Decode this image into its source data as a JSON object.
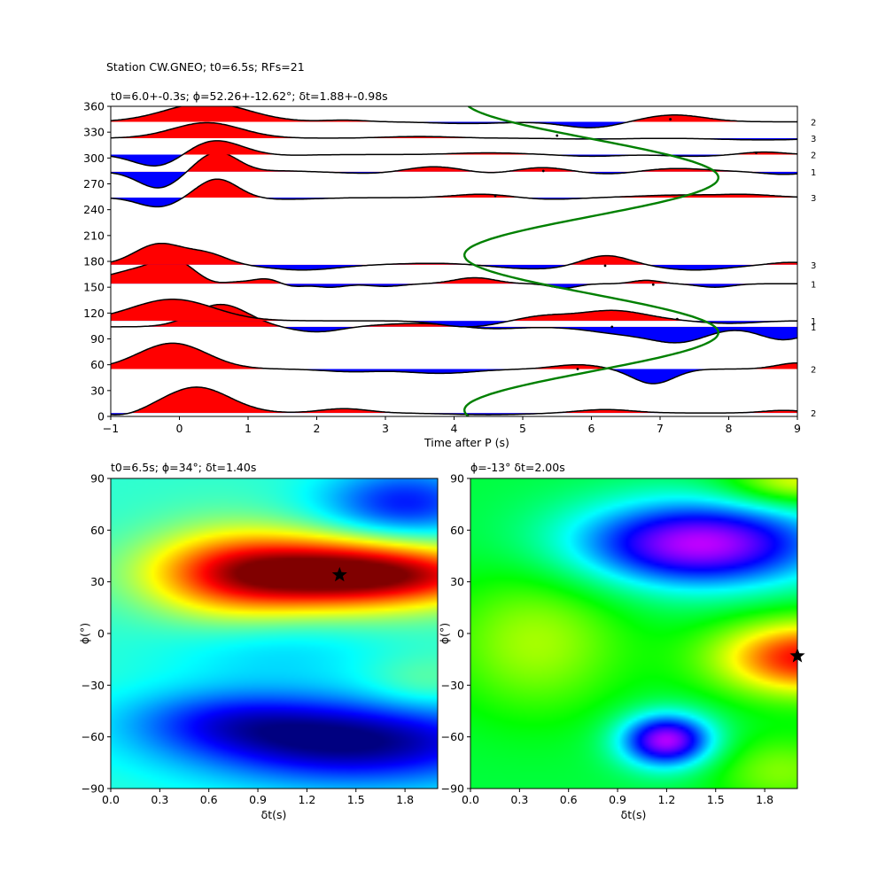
{
  "figure_title": "Station CW.GNEO; t0=6.5s; RFs=21",
  "chart_data": [
    {
      "type": "line",
      "panel": "receiver-functions",
      "title": "t0=6.0+-0.3s; ϕ=52.26+-12.62°; δt=1.88+-0.98s",
      "xlabel": "Time after P (s)",
      "ylabel": "",
      "xlim": [
        -1,
        9
      ],
      "ylim": [
        0,
        360
      ],
      "xticks": [
        "−1",
        "0",
        "1",
        "2",
        "3",
        "4",
        "5",
        "6",
        "7",
        "8",
        "9"
      ],
      "yticks": [
        "0",
        "30",
        "60",
        "90",
        "120",
        "150",
        "180",
        "210",
        "240",
        "270",
        "300",
        "330",
        "360"
      ],
      "fill_positive": "#ff0000",
      "fill_negative": "#0000ff",
      "traces": [
        {
          "baseaz": 4,
          "count": "2",
          "pulses": [
            [
              0.25,
              30,
              0.48
            ],
            [
              2.4,
              5,
              0.35
            ],
            [
              6.2,
              4,
              0.4
            ],
            [
              8.8,
              3,
              0.3
            ],
            [
              -0.8,
              -4,
              0.25
            ],
            [
              4.5,
              -2,
              0.6
            ]
          ]
        },
        {
          "baseaz": 55,
          "count": "2",
          "pulses": [
            [
              -0.1,
              30,
              0.5
            ],
            [
              5.8,
              5,
              0.35
            ],
            [
              6.9,
              -17,
              0.3
            ],
            [
              9.0,
              7,
              0.3
            ],
            [
              3.8,
              -5,
              0.5
            ],
            [
              2.5,
              -3,
              0.4
            ]
          ]
        },
        {
          "baseaz": 104,
          "count": "1",
          "pulses": [
            [
              0.6,
              26,
              0.4
            ],
            [
              3.5,
              4,
              0.6
            ],
            [
              8.8,
              -15,
              0.35
            ],
            [
              6.5,
              -8,
              0.5
            ],
            [
              7.3,
              -16,
              0.4
            ],
            [
              4.5,
              -3,
              0.4
            ],
            [
              2.0,
              -6,
              0.35
            ]
          ]
        },
        {
          "baseaz": 111,
          "count": "1",
          "pulses": [
            [
              -0.1,
              25,
              0.6
            ],
            [
              6.3,
              12,
              0.5
            ],
            [
              5.3,
              5,
              0.35
            ],
            [
              8.0,
              -3,
              0.4
            ],
            [
              4.2,
              -7,
              0.4
            ]
          ]
        },
        {
          "baseaz": 154,
          "count": "1",
          "pulses": [
            [
              -0.3,
              21,
              0.6
            ],
            [
              -0.1,
              10,
              0.22
            ],
            [
              1.3,
              6,
              0.2
            ],
            [
              4.3,
              7,
              0.3
            ],
            [
              6.8,
              4,
              0.2
            ],
            [
              7.8,
              -4,
              0.25
            ],
            [
              0.5,
              -6,
              0.2
            ],
            [
              1.6,
              -4,
              0.2
            ],
            [
              2.2,
              -4,
              0.22
            ],
            [
              3.0,
              -3,
              0.25
            ],
            [
              5.6,
              -5,
              0.2
            ]
          ]
        },
        {
          "baseaz": 176,
          "count": "3",
          "pulses": [
            [
              -0.3,
              24,
              0.35
            ],
            [
              0.4,
              12,
              0.3
            ],
            [
              6.2,
              12,
              0.35
            ],
            [
              3.8,
              2,
              0.6
            ],
            [
              8.9,
              3,
              0.3
            ],
            [
              1.8,
              -6,
              0.5
            ],
            [
              5.2,
              -5,
              0.6
            ],
            [
              7.5,
              -6,
              0.5
            ]
          ]
        },
        {
          "baseaz": 254,
          "count": "3",
          "pulses": [
            [
              0.55,
              22,
              0.3
            ],
            [
              -0.3,
              -11,
              0.3
            ],
            [
              4.4,
              4,
              0.4
            ],
            [
              7.3,
              3,
              0.6
            ],
            [
              8.3,
              3,
              0.4
            ],
            [
              1.5,
              -2,
              0.5
            ],
            [
              5.4,
              -2,
              0.4
            ]
          ]
        },
        {
          "baseaz": 284,
          "count": "1",
          "pulses": [
            [
              0.55,
              23,
              0.3
            ],
            [
              -0.3,
              -19,
              0.3
            ],
            [
              3.7,
              6,
              0.4
            ],
            [
              5.3,
              5,
              0.35
            ],
            [
              7.2,
              4,
              0.5
            ],
            [
              1.5,
              1,
              0.3
            ],
            [
              2.8,
              -2,
              0.4
            ],
            [
              4.5,
              -2,
              0.3
            ],
            [
              6.3,
              -3,
              0.4
            ],
            [
              8.8,
              -3,
              0.3
            ]
          ]
        },
        {
          "baseaz": 304,
          "count": "2",
          "pulses": [
            [
              0.5,
              17,
              0.4
            ],
            [
              -0.3,
              -15,
              0.35
            ],
            [
              4.5,
              2,
              0.5
            ],
            [
              8.5,
              3,
              0.3
            ],
            [
              6.0,
              -2,
              0.4
            ],
            [
              7.5,
              -2,
              0.4
            ],
            [
              1.5,
              -1,
              0.4
            ]
          ]
        },
        {
          "baseaz": 323,
          "count": "3",
          "pulses": [
            [
              0.4,
              18,
              0.5
            ],
            [
              3.5,
              2,
              0.5
            ],
            [
              6.0,
              -1,
              0.5
            ],
            [
              8.5,
              -2,
              0.6
            ]
          ]
        },
        {
          "baseaz": 342,
          "count": "2",
          "pulses": [
            [
              0.4,
              22,
              0.6
            ],
            [
              7.2,
              8,
              0.45
            ],
            [
              2.4,
              2,
              0.3
            ],
            [
              4.2,
              -2,
              0.5
            ],
            [
              6.0,
              -7,
              0.4
            ]
          ]
        }
      ],
      "dots": [
        [
          5.5,
          326
        ],
        [
          4.6,
          256
        ],
        [
          5.3,
          285
        ],
        [
          8.4,
          306
        ],
        [
          7.15,
          345
        ],
        [
          5.8,
          55
        ],
        [
          6.3,
          104
        ],
        [
          7.25,
          113
        ],
        [
          6.2,
          175
        ],
        [
          6.9,
          153
        ]
      ],
      "model_curve": {
        "color": "#008000",
        "t_center": 6.0,
        "amplitude": 1.85,
        "phase_deg": 52.26
      }
    },
    {
      "type": "heatmap",
      "panel": "grid-search-left",
      "title": "t0=6.5s; ϕ=34°; δt=1.40s",
      "xlabel": "δt(s)",
      "ylabel": "ϕ(°)",
      "xlim": [
        0,
        2.0
      ],
      "ylim": [
        -90,
        90
      ],
      "xticks": [
        "0.0",
        "0.3",
        "0.6",
        "0.9",
        "1.2",
        "1.5",
        "1.8"
      ],
      "yticks": [
        "−90",
        "−60",
        "−30",
        "0",
        "30",
        "60",
        "90"
      ],
      "colormap": "jet",
      "best": {
        "dt": 1.4,
        "phi": 34
      }
    },
    {
      "type": "heatmap",
      "panel": "grid-search-right",
      "title": "ϕ=-13° δt=2.00s",
      "xlabel": "δt(s)",
      "ylabel": "ϕ(°)",
      "xlim": [
        0,
        2.0
      ],
      "ylim": [
        -90,
        90
      ],
      "xticks": [
        "0.0",
        "0.3",
        "0.6",
        "0.9",
        "1.2",
        "1.5",
        "1.8"
      ],
      "yticks": [
        "−90",
        "−60",
        "−30",
        "0",
        "30",
        "60",
        "90"
      ],
      "colormap": "gist_rainbow_r",
      "best": {
        "dt": 2.0,
        "phi": -13
      }
    }
  ]
}
